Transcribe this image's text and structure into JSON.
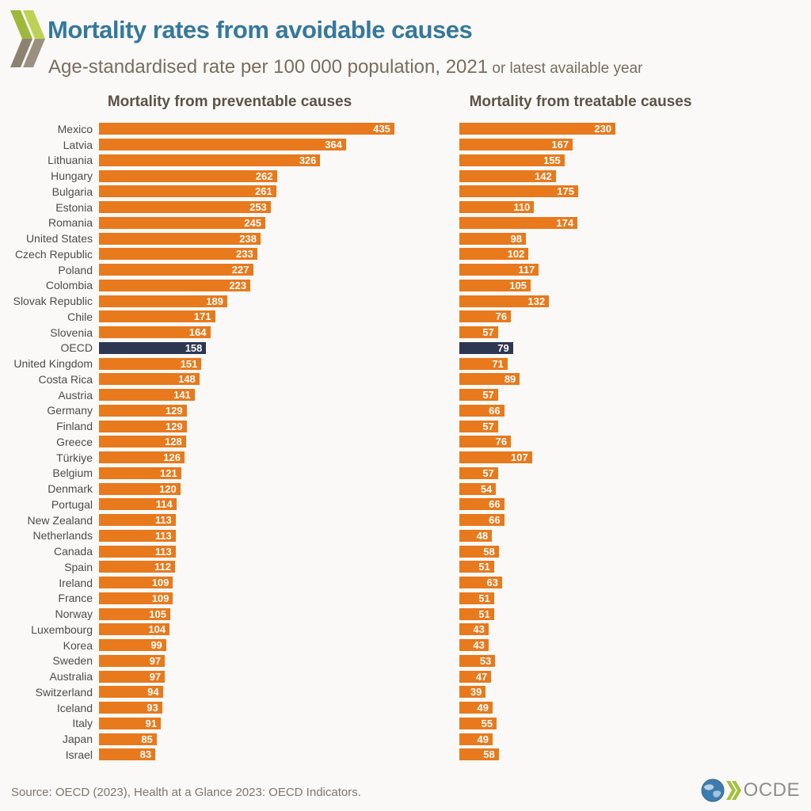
{
  "header": {
    "title": "Mortality rates from avoidable causes",
    "subtitle": "Age-standardised rate per 100 000 population, 2021",
    "subtitle_suffix": " or latest available year"
  },
  "panels": {
    "left_title": "Mortality from preventable causes",
    "right_title": "Mortality from treatable causes"
  },
  "chart_data": {
    "type": "bar",
    "orientation": "horizontal",
    "title": "Mortality rates from avoidable causes",
    "unit": "Age-standardised rate per 100 000 population, 2021 or latest available year",
    "highlight_category": "OECD",
    "legend_position": "none",
    "grid": false,
    "xlim": [
      0,
      510
    ],
    "categories": [
      "Mexico",
      "Latvia",
      "Lithuania",
      "Hungary",
      "Bulgaria",
      "Estonia",
      "Romania",
      "United States",
      "Czech Republic",
      "Poland",
      "Colombia",
      "Slovak Republic",
      "Chile",
      "Slovenia",
      "OECD",
      "United Kingdom",
      "Costa Rica",
      "Austria",
      "Germany",
      "Finland",
      "Greece",
      "Türkiye",
      "Belgium",
      "Denmark",
      "Portugal",
      "New Zealand",
      "Netherlands",
      "Canada",
      "Spain",
      "Ireland",
      "France",
      "Norway",
      "Luxembourg",
      "Korea",
      "Sweden",
      "Australia",
      "Switzerland",
      "Iceland",
      "Italy",
      "Japan",
      "Israel"
    ],
    "series": [
      {
        "name": "Mortality from preventable causes",
        "values": [
          435,
          364,
          326,
          262,
          261,
          253,
          245,
          238,
          233,
          227,
          223,
          189,
          171,
          164,
          158,
          151,
          148,
          141,
          129,
          129,
          128,
          126,
          121,
          120,
          114,
          113,
          113,
          113,
          112,
          109,
          109,
          105,
          104,
          99,
          97,
          97,
          94,
          93,
          91,
          85,
          83
        ]
      },
      {
        "name": "Mortality from treatable causes",
        "values": [
          230,
          167,
          155,
          142,
          175,
          110,
          174,
          98,
          102,
          117,
          105,
          132,
          76,
          57,
          79,
          71,
          89,
          57,
          66,
          57,
          76,
          107,
          57,
          54,
          66,
          66,
          48,
          58,
          51,
          63,
          51,
          51,
          43,
          43,
          53,
          47,
          39,
          49,
          55,
          49,
          58
        ]
      }
    ],
    "colors": {
      "bar": "#e8791c",
      "highlight_bar": "#2e3752",
      "value_label": "#ffffff"
    }
  },
  "footer": {
    "source": "Source: OECD (2023), Health at a Glance 2023: OECD Indicators.",
    "logo_text": "OCDE"
  }
}
